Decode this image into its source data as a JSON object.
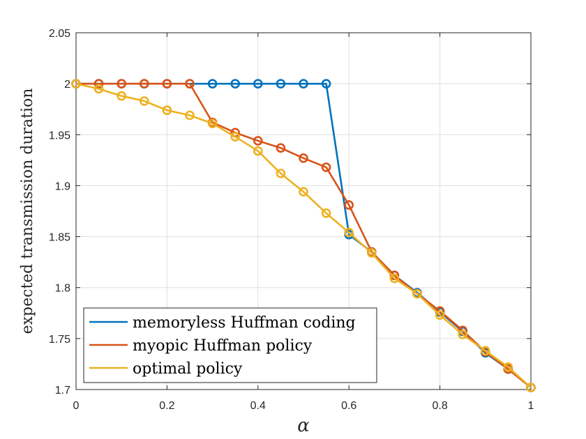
{
  "chart_data": {
    "type": "line",
    "title": "",
    "xlabel": "α",
    "ylabel": "expected transmission duration",
    "xlim": [
      0,
      1
    ],
    "ylim": [
      1.7,
      2.05
    ],
    "xticks": [
      0,
      0.2,
      0.4,
      0.6,
      0.8,
      1
    ],
    "xtick_labels": [
      "0",
      "0.2",
      "0.4",
      "0.6",
      "0.8",
      "1"
    ],
    "yticks": [
      1.7,
      1.75,
      1.8,
      1.85,
      1.9,
      1.95,
      2,
      2.05
    ],
    "ytick_labels": [
      "1.7",
      "1.75",
      "1.8",
      "1.85",
      "1.9",
      "1.95",
      "2",
      "2.05"
    ],
    "grid": true,
    "legend_position": "bottom-left",
    "x": [
      0,
      0.05,
      0.1,
      0.15,
      0.2,
      0.25,
      0.3,
      0.35,
      0.4,
      0.45,
      0.5,
      0.55,
      0.6,
      0.65,
      0.7,
      0.75,
      0.8,
      0.85,
      0.9,
      0.95,
      1
    ],
    "series": [
      {
        "name": "memoryless Huffman coding",
        "color": "#0072BD",
        "marker": "circle",
        "values": [
          2.0,
          2.0,
          2.0,
          2.0,
          2.0,
          2.0,
          2.0,
          2.0,
          2.0,
          2.0,
          2.0,
          2.0,
          1.852,
          1.835,
          1.812,
          1.795,
          1.776,
          1.757,
          1.736,
          1.72,
          1.702
        ]
      },
      {
        "name": "myopic Huffman policy",
        "color": "#D95319",
        "marker": "circle",
        "values": [
          2.0,
          2.0,
          2.0,
          2.0,
          2.0,
          2.0,
          1.962,
          1.952,
          1.944,
          1.937,
          1.927,
          1.918,
          1.881,
          1.835,
          1.812,
          1.794,
          1.777,
          1.758,
          1.737,
          1.72,
          1.702
        ]
      },
      {
        "name": "optimal policy",
        "color": "#EDB120",
        "marker": "circle",
        "values": [
          2.0,
          1.995,
          1.988,
          1.983,
          1.974,
          1.969,
          1.961,
          1.948,
          1.934,
          1.912,
          1.894,
          1.873,
          1.854,
          1.834,
          1.809,
          1.794,
          1.773,
          1.754,
          1.738,
          1.722,
          1.702
        ]
      }
    ]
  }
}
